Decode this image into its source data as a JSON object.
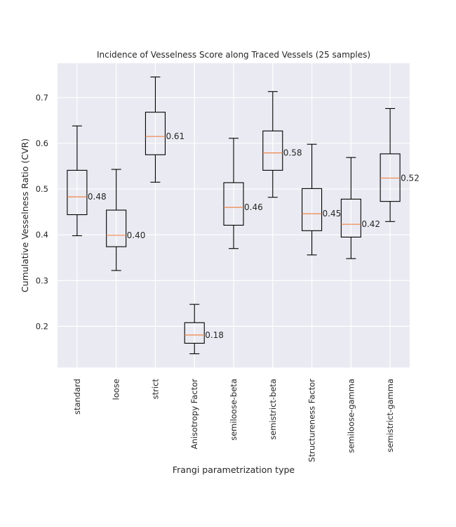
{
  "chart_data": {
    "type": "box",
    "title": "Incidence of Vesselness Score along Traced Vessels (25 samples)",
    "xlabel": "Frangi parametrization type",
    "ylabel": "Cumulative Vesselness Ratio (CVR)",
    "ylim": [
      0.11,
      0.775
    ],
    "yticks": [
      0.2,
      0.3,
      0.4,
      0.5,
      0.6,
      0.7
    ],
    "ytick_labels": [
      "0.2",
      "0.3",
      "0.4",
      "0.5",
      "0.6",
      "0.7"
    ],
    "grid": true,
    "categories": [
      "standard",
      "loose",
      "strict",
      "Anisotropy Factor",
      "semiloose-beta",
      "semistrict-beta",
      "Structureness Factor",
      "semiloose-gamma",
      "semistrict-gamma"
    ],
    "boxes": [
      {
        "whisker_low": 0.398,
        "q1": 0.444,
        "median": 0.483,
        "q3": 0.541,
        "whisker_high": 0.638,
        "median_label": "0.48"
      },
      {
        "whisker_low": 0.322,
        "q1": 0.374,
        "median": 0.399,
        "q3": 0.454,
        "whisker_high": 0.543,
        "median_label": "0.40"
      },
      {
        "whisker_low": 0.515,
        "q1": 0.575,
        "median": 0.615,
        "q3": 0.668,
        "whisker_high": 0.745,
        "median_label": "0.61"
      },
      {
        "whisker_low": 0.14,
        "q1": 0.163,
        "median": 0.181,
        "q3": 0.208,
        "whisker_high": 0.248,
        "median_label": "0.18"
      },
      {
        "whisker_low": 0.37,
        "q1": 0.421,
        "median": 0.46,
        "q3": 0.514,
        "whisker_high": 0.611,
        "median_label": "0.46"
      },
      {
        "whisker_low": 0.482,
        "q1": 0.541,
        "median": 0.579,
        "q3": 0.627,
        "whisker_high": 0.713,
        "median_label": "0.58"
      },
      {
        "whisker_low": 0.356,
        "q1": 0.409,
        "median": 0.446,
        "q3": 0.501,
        "whisker_high": 0.598,
        "median_label": "0.45"
      },
      {
        "whisker_low": 0.348,
        "q1": 0.395,
        "median": 0.423,
        "q3": 0.478,
        "whisker_high": 0.569,
        "median_label": "0.42"
      },
      {
        "whisker_low": 0.429,
        "q1": 0.473,
        "median": 0.524,
        "q3": 0.577,
        "whisker_high": 0.676,
        "median_label": "0.52"
      }
    ],
    "colors": {
      "background": "#eaeaf2",
      "grid": "#ffffff",
      "box": "#000000",
      "median": "#ee854a",
      "text": "#262626"
    }
  }
}
